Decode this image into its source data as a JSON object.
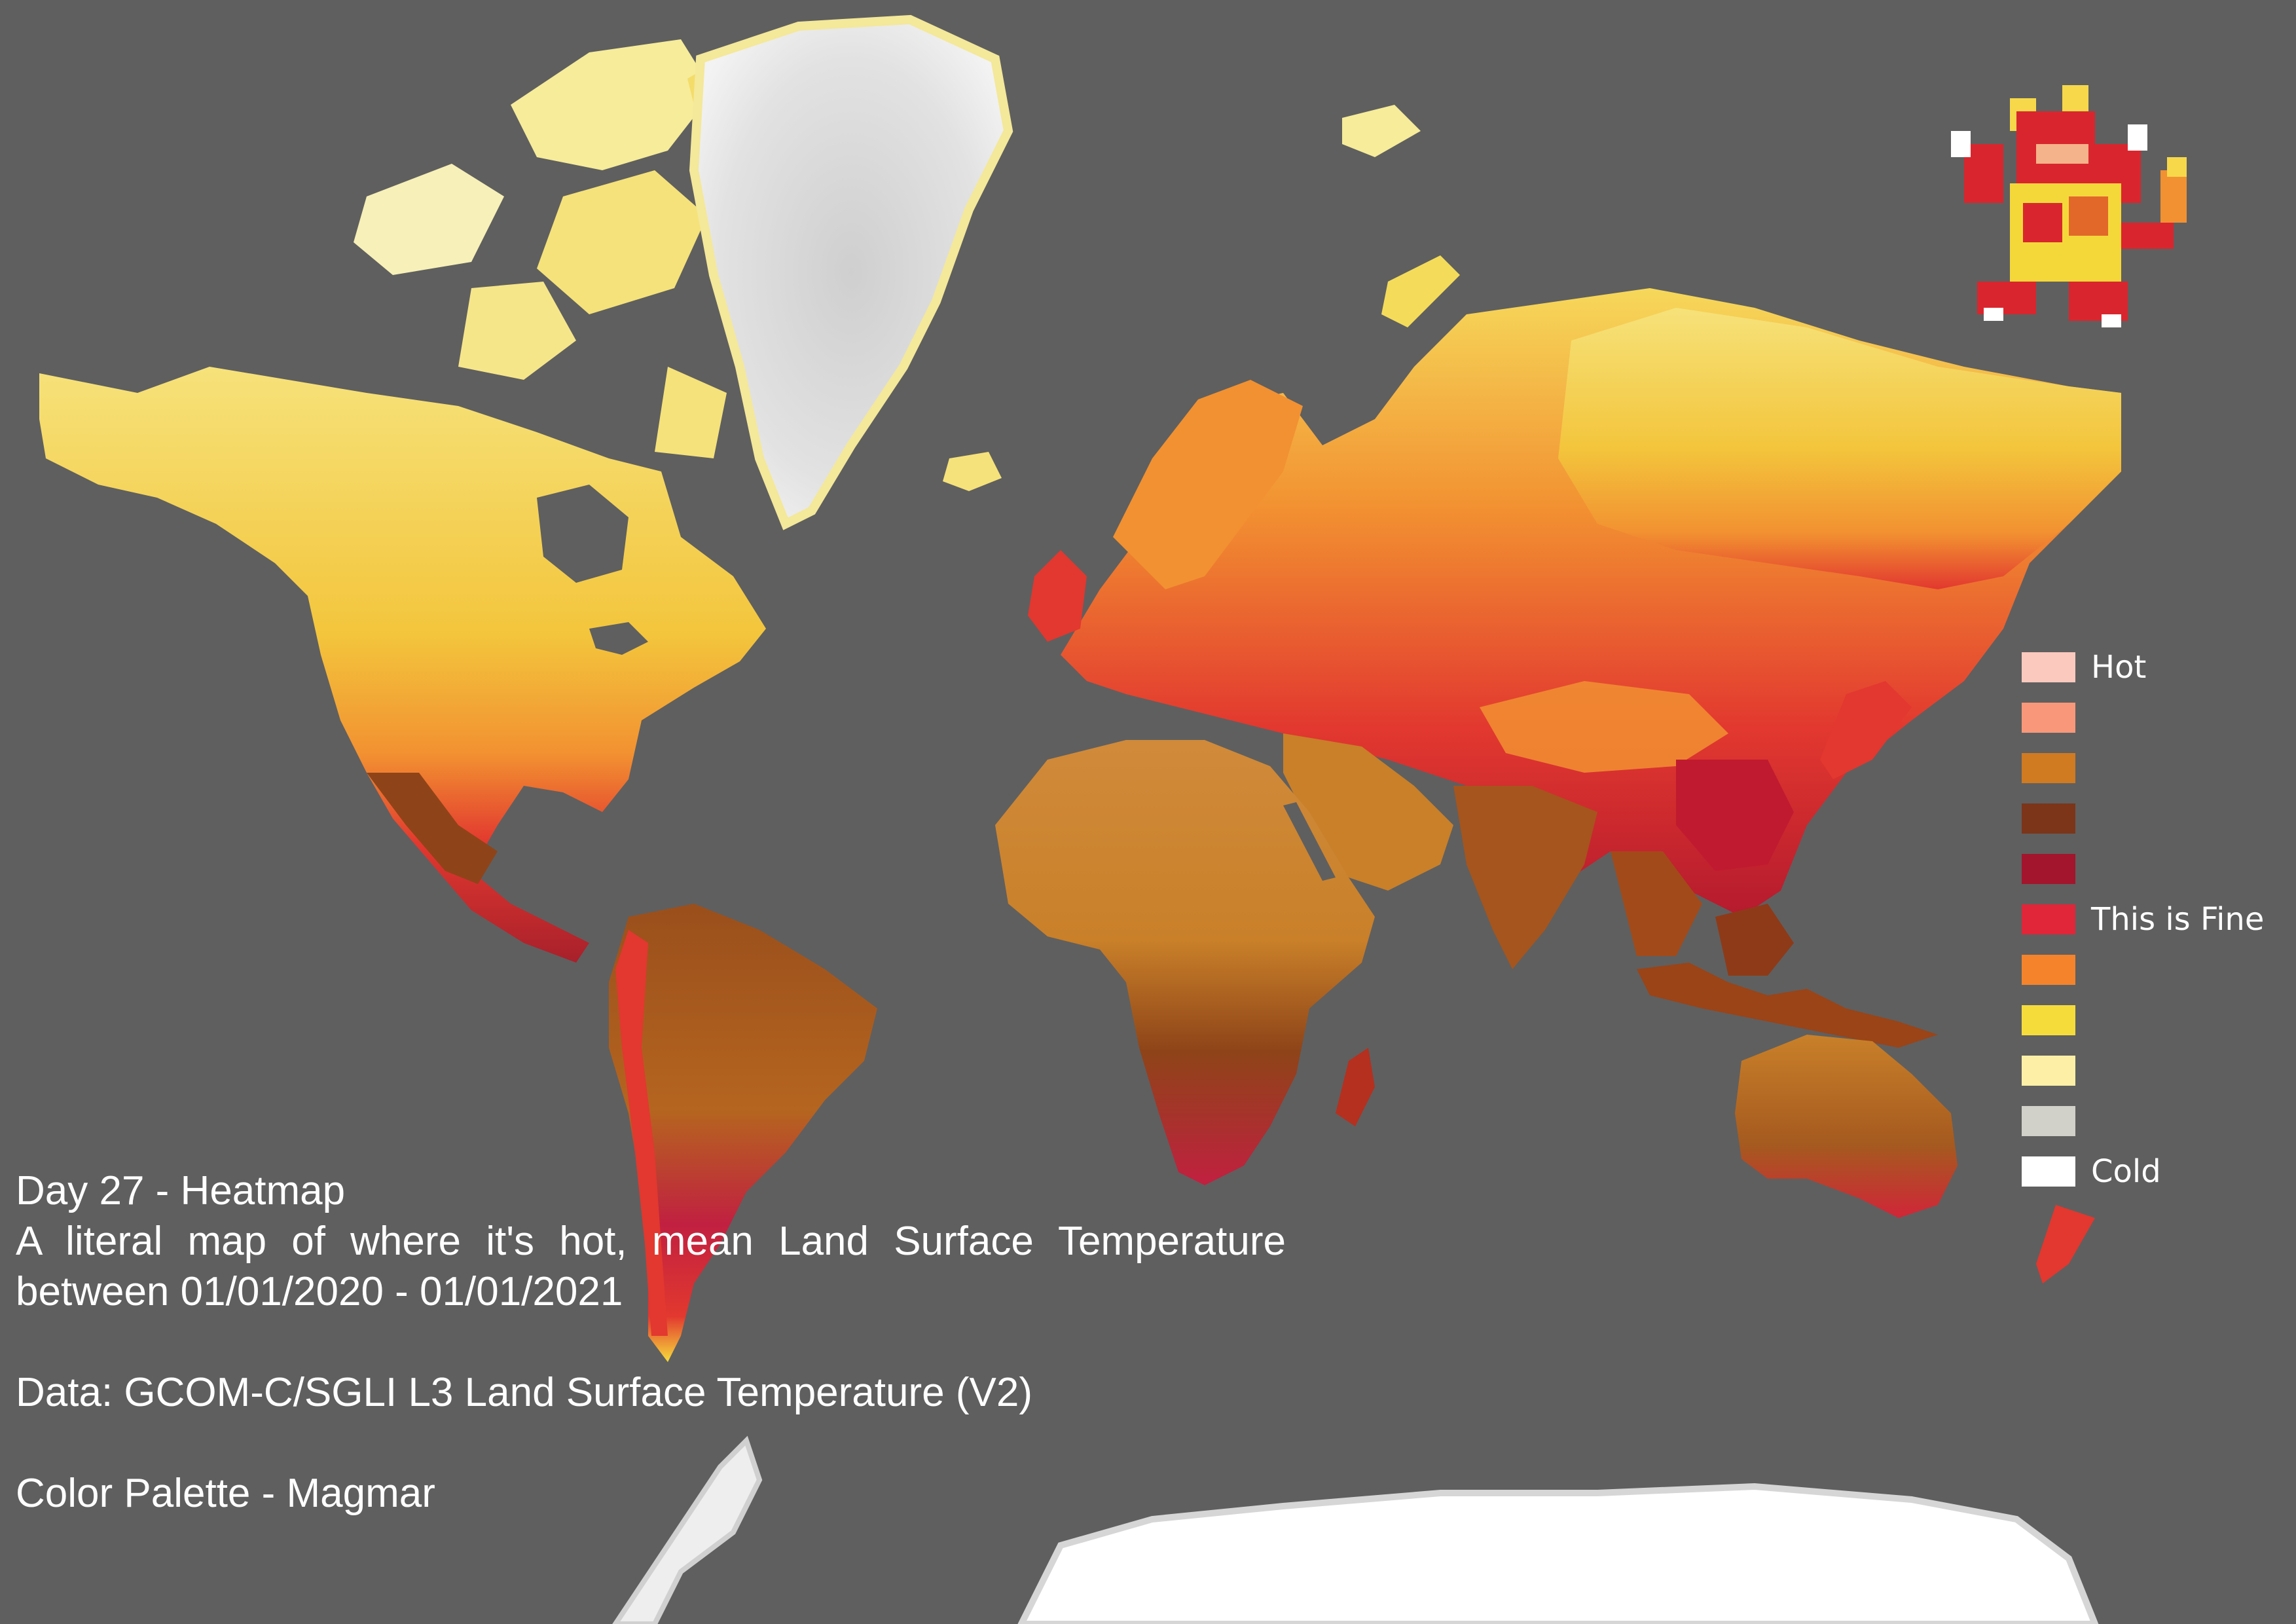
{
  "caption": {
    "title": "Day 27 - Heatmap",
    "description": "A literal map of where it's hot, mean Land Surface Temperature between 01/01/2020 - 01/01/2021",
    "data_source": "Data: GCOM-C/SGLI L3 Land Surface Temperature (V2)",
    "palette": "Color Palette - Magmar"
  },
  "legend": {
    "items": [
      {
        "label": "Hot",
        "color": "#fcc9bf"
      },
      {
        "label": "",
        "color": "#f8977a"
      },
      {
        "label": "",
        "color": "#d07a22"
      },
      {
        "label": "",
        "color": "#7c3518"
      },
      {
        "label": "",
        "color": "#a3152c"
      },
      {
        "label": "This is Fine",
        "color": "#e1263a"
      },
      {
        "label": "",
        "color": "#f4832c"
      },
      {
        "label": "",
        "color": "#f6dc3a"
      },
      {
        "label": "",
        "color": "#fdf0a6"
      },
      {
        "label": "",
        "color": "#d1d1ca"
      },
      {
        "label": "Cold",
        "color": "#ffffff"
      }
    ]
  },
  "colors": {
    "background": "#5f5f5f",
    "ice": "#ececec",
    "cold": "#f6e27a",
    "cool": "#f3c53c",
    "mild": "#f29131",
    "warm": "#e2382f",
    "hot": "#b51a2e",
    "arid": "#c98029",
    "tropical": "#8e4418"
  },
  "mascot": {
    "icon": "magmar-sprite-icon"
  }
}
